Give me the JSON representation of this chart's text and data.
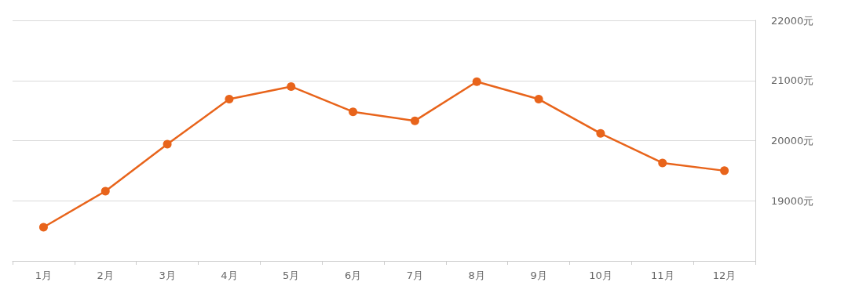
{
  "chart_data": {
    "type": "line",
    "categories": [
      "1月",
      "2月",
      "3月",
      "4月",
      "5月",
      "6月",
      "7月",
      "8月",
      "9月",
      "10月",
      "11月",
      "12月"
    ],
    "series": [
      {
        "color": "#e8641b",
        "values": [
          18560,
          19160,
          19940,
          20690,
          20900,
          20480,
          20330,
          20980,
          20690,
          20120,
          19630,
          19500
        ]
      }
    ],
    "ylim": [
      18000,
      22000
    ],
    "yticks": [
      {
        "value": 18000,
        "label": null
      },
      {
        "value": 19000,
        "label": "19000元"
      },
      {
        "value": 20000,
        "label": "20000元"
      },
      {
        "value": 21000,
        "label": "21000元"
      },
      {
        "value": 22000,
        "label": "22000元"
      }
    ],
    "grid": "y",
    "marker": "circle",
    "line_style": "solid"
  }
}
